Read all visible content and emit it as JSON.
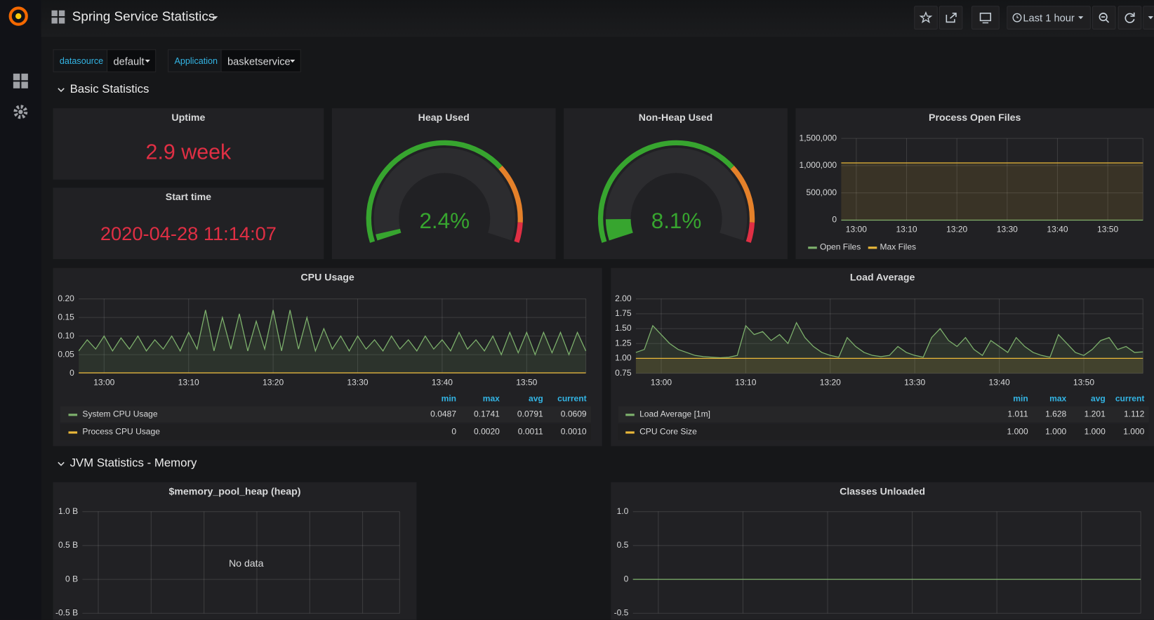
{
  "header": {
    "title": "Spring Service Statistics",
    "time_range": "Last 1 hour"
  },
  "variables": [
    {
      "name": "datasource",
      "value": "default"
    },
    {
      "name": "Application",
      "value": "basketservice"
    }
  ],
  "rows": [
    {
      "title": "Basic Statistics"
    },
    {
      "title": "JVM Statistics - Memory"
    }
  ],
  "stats": [
    {
      "title": "Uptime",
      "value": "2.9 week"
    },
    {
      "title": "Start time",
      "value": "2020-04-28 11:14:07"
    }
  ],
  "gauges": [
    {
      "title": "Heap Used",
      "value": 2.4,
      "value_label": "2.4%"
    },
    {
      "title": "Non-Heap Used",
      "value": 8.1,
      "value_label": "8.1%"
    }
  ],
  "charts": [
    {
      "type": "line",
      "title": "Process Open Files",
      "xlim": [
        777,
        837
      ],
      "xticks": [
        {
          "value": 780,
          "label": "13:00"
        },
        {
          "value": 790,
          "label": "13:10"
        },
        {
          "value": 800,
          "label": "13:20"
        },
        {
          "value": 810,
          "label": "13:30"
        },
        {
          "value": 820,
          "label": "13:40"
        },
        {
          "value": 830,
          "label": "13:50"
        }
      ],
      "ylim": [
        0,
        1500000
      ],
      "yticks": [
        {
          "value": 1500000,
          "label": "1,500,000"
        },
        {
          "value": 1000000,
          "label": "1,000,000"
        },
        {
          "value": 500000,
          "label": "500,000"
        },
        0
      ],
      "legend": "bottom",
      "series": [
        {
          "name": "Open Files",
          "color": "#7eb26d",
          "x": [
            777,
            837
          ],
          "values": [
            0,
            0
          ]
        },
        {
          "name": "Max Files",
          "color": "#eab839",
          "x": [
            777,
            837
          ],
          "values": [
            1050000,
            1050000
          ]
        }
      ]
    },
    {
      "type": "line",
      "title": "CPU Usage",
      "xlim": [
        777,
        837
      ],
      "x": [
        777,
        778,
        779,
        780,
        781,
        782,
        783,
        784,
        785,
        786,
        787,
        788,
        789,
        790,
        791,
        792,
        793,
        794,
        795,
        796,
        797,
        798,
        799,
        800,
        801,
        802,
        803,
        804,
        805,
        806,
        807,
        808,
        809,
        810,
        811,
        812,
        813,
        814,
        815,
        816,
        817,
        818,
        819,
        820,
        821,
        822,
        823,
        824,
        825,
        826,
        827,
        828,
        829,
        830,
        831,
        832,
        833,
        834,
        835,
        836,
        837
      ],
      "xticks": [
        {
          "value": 780,
          "label": "13:00"
        },
        {
          "value": 790,
          "label": "13:10"
        },
        {
          "value": 800,
          "label": "13:20"
        },
        {
          "value": 810,
          "label": "13:30"
        },
        {
          "value": 820,
          "label": "13:40"
        },
        {
          "value": 830,
          "label": "13:50"
        }
      ],
      "ylim": [
        0,
        0.2
      ],
      "yticks": [
        {
          "value": 0.2,
          "label": "0.20"
        },
        0.15,
        {
          "value": 0.1,
          "label": "0.10"
        },
        0.05,
        0
      ],
      "legend": "bottom",
      "legend_columns": [
        "min",
        "max",
        "avg",
        "current"
      ],
      "series": [
        {
          "name": "System CPU Usage",
          "color": "#7eb26d",
          "stats": [
            "0.0487",
            "0.1741",
            "0.0791",
            "0.0609"
          ],
          "values": [
            0.06,
            0.09,
            0.065,
            0.1,
            0.06,
            0.095,
            0.065,
            0.1,
            0.06,
            0.09,
            0.065,
            0.1,
            0.06,
            0.11,
            0.065,
            0.17,
            0.06,
            0.15,
            0.065,
            0.16,
            0.06,
            0.14,
            0.065,
            0.17,
            0.06,
            0.17,
            0.065,
            0.15,
            0.06,
            0.12,
            0.065,
            0.1,
            0.06,
            0.1,
            0.065,
            0.09,
            0.06,
            0.1,
            0.065,
            0.09,
            0.06,
            0.1,
            0.065,
            0.09,
            0.06,
            0.11,
            0.065,
            0.09,
            0.06,
            0.1,
            0.05,
            0.11,
            0.055,
            0.11,
            0.05,
            0.11,
            0.055,
            0.11,
            0.05,
            0.11,
            0.06
          ]
        },
        {
          "name": "Process CPU Usage",
          "color": "#eab839",
          "stats": [
            "0",
            "0.0020",
            "0.0011",
            "0.0010"
          ],
          "x": [
            777,
            837
          ],
          "values": [
            0.001,
            0.001
          ]
        }
      ]
    },
    {
      "type": "line",
      "title": "Load Average",
      "xlim": [
        777,
        837
      ],
      "x": [
        777,
        778,
        779,
        780,
        781,
        782,
        783,
        784,
        785,
        786,
        787,
        788,
        789,
        790,
        791,
        792,
        793,
        794,
        795,
        796,
        797,
        798,
        799,
        800,
        801,
        802,
        803,
        804,
        805,
        806,
        807,
        808,
        809,
        810,
        811,
        812,
        813,
        814,
        815,
        816,
        817,
        818,
        819,
        820,
        821,
        822,
        823,
        824,
        825,
        826,
        827,
        828,
        829,
        830,
        831,
        832,
        833,
        834,
        835,
        836,
        837
      ],
      "xticks": [
        {
          "value": 780,
          "label": "13:00"
        },
        {
          "value": 790,
          "label": "13:10"
        },
        {
          "value": 800,
          "label": "13:20"
        },
        {
          "value": 810,
          "label": "13:30"
        },
        {
          "value": 820,
          "label": "13:40"
        },
        {
          "value": 830,
          "label": "13:50"
        }
      ],
      "ylim": [
        0.75,
        2
      ],
      "yticks": [
        {
          "value": 2,
          "label": "2.00"
        },
        1.75,
        {
          "value": 1.5,
          "label": "1.50"
        },
        1.25,
        {
          "value": 1,
          "label": "1.00"
        },
        0.75
      ],
      "legend": "bottom",
      "legend_columns": [
        "min",
        "max",
        "avg",
        "current"
      ],
      "series": [
        {
          "name": "Load Average [1m]",
          "color": "#7eb26d",
          "stats": [
            "1.011",
            "1.628",
            "1.201",
            "1.112"
          ],
          "values": [
            1.1,
            1.15,
            1.55,
            1.4,
            1.25,
            1.15,
            1.1,
            1.05,
            1.03,
            1.02,
            1.01,
            1.02,
            1.05,
            1.55,
            1.4,
            1.45,
            1.3,
            1.4,
            1.25,
            1.6,
            1.35,
            1.2,
            1.1,
            1.05,
            1.02,
            1.35,
            1.2,
            1.1,
            1.05,
            1.03,
            1.05,
            1.2,
            1.1,
            1.05,
            1.02,
            1.35,
            1.5,
            1.3,
            1.2,
            1.35,
            1.15,
            1.05,
            1.3,
            1.2,
            1.1,
            1.35,
            1.2,
            1.1,
            1.05,
            1.02,
            1.4,
            1.25,
            1.1,
            1.05,
            1.15,
            1.3,
            1.35,
            1.15,
            1.2,
            1.1,
            1.11
          ]
        },
        {
          "name": "CPU Core Size",
          "color": "#eab839",
          "stats": [
            "1.000",
            "1.000",
            "1.000",
            "1.000"
          ],
          "x": [
            777,
            837
          ],
          "values": [
            1,
            1
          ]
        }
      ]
    },
    {
      "type": "line",
      "title": "$memory_pool_heap (heap)",
      "xlim": [
        777,
        837
      ],
      "xticks": [
        780,
        790,
        800,
        810,
        820,
        830
      ],
      "xaxis_labels": false,
      "ylim": [
        -0.5,
        1
      ],
      "yticks": [
        {
          "value": 1,
          "label": "1.0 B"
        },
        {
          "value": 0.5,
          "label": "0.5 B"
        },
        {
          "value": 0,
          "label": "0 B"
        },
        {
          "value": -0.5,
          "label": "-0.5 B"
        }
      ],
      "no_data": "No data",
      "series": []
    },
    {
      "type": "line",
      "title": "Classes Unloaded",
      "xlim": [
        777,
        837
      ],
      "xticks": [
        780,
        790,
        800,
        810,
        820,
        830
      ],
      "xaxis_labels": false,
      "ylim": [
        -0.5,
        1
      ],
      "yticks": [
        {
          "value": 1,
          "label": "1.0"
        },
        0.5,
        0,
        -0.5
      ],
      "series": [
        {
          "color": "#7eb26d",
          "x": [
            777,
            837
          ],
          "values": [
            0,
            0
          ]
        }
      ]
    }
  ]
}
